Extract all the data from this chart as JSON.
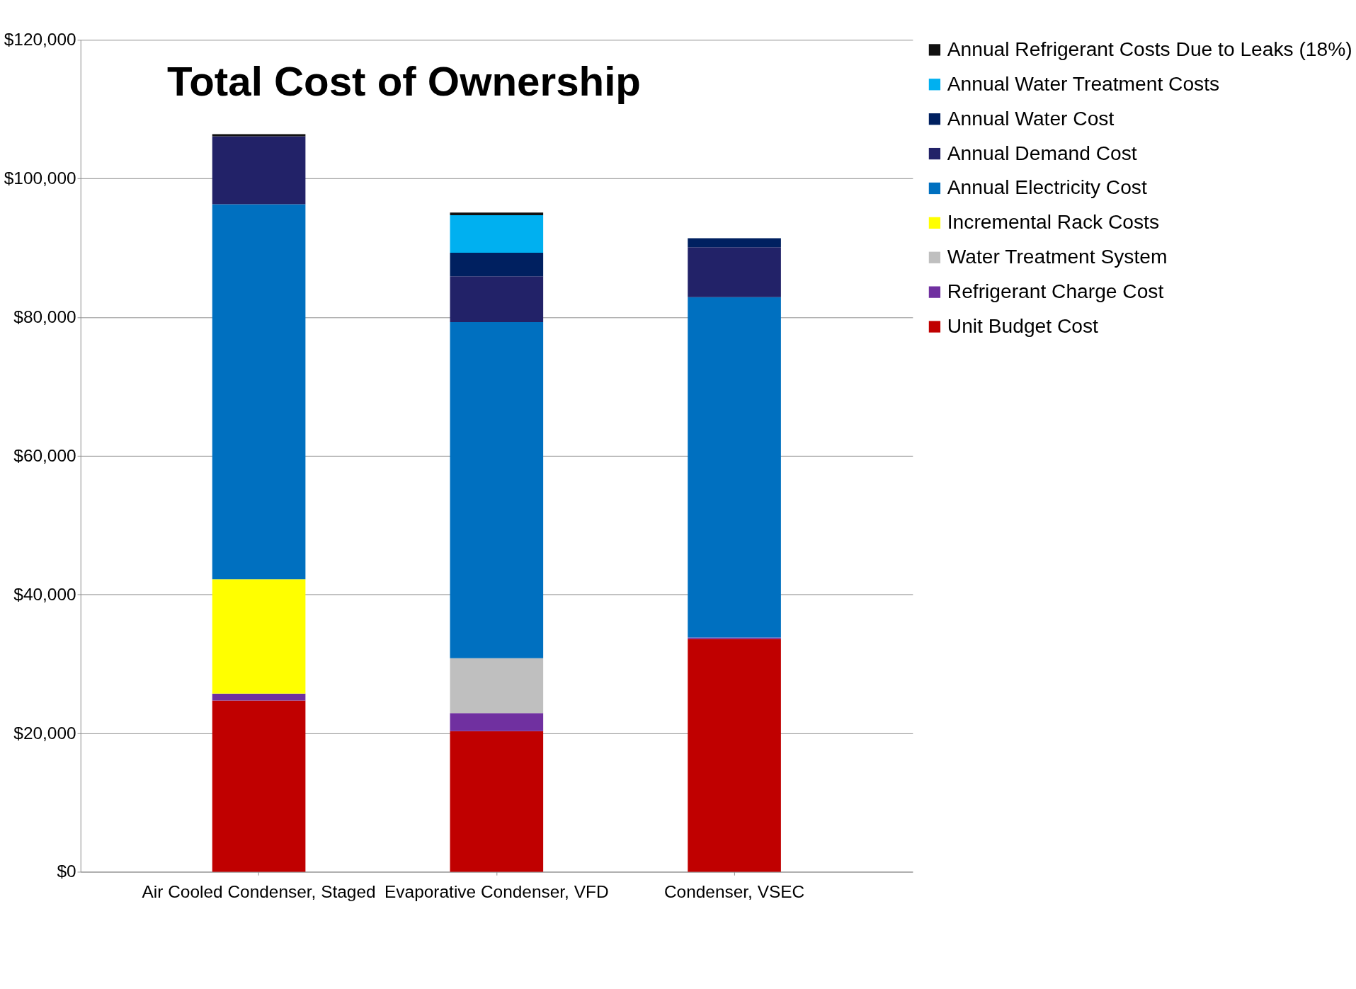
{
  "chart_data": {
    "type": "bar",
    "title": "Total Cost of Ownership",
    "stacked": true,
    "categories": [
      "Air Cooled Condenser, Staged",
      "Evaporative Condenser, VFD",
      "Condenser, VSEC"
    ],
    "series": [
      {
        "name": "Unit Budget Cost",
        "color": "#c00000",
        "values": [
          24700,
          20300,
          33600
        ]
      },
      {
        "name": "Refrigerant Charge Cost",
        "color": "#7030a0",
        "values": [
          1000,
          2600,
          200
        ]
      },
      {
        "name": "Water Treatment System",
        "color": "#bfbfbf",
        "values": [
          0,
          7900,
          0
        ]
      },
      {
        "name": "Incremental Rack Costs",
        "color": "#ffff00",
        "values": [
          16500,
          0,
          0
        ]
      },
      {
        "name": "Annual Electricity Cost",
        "color": "#0070c0",
        "values": [
          54100,
          48500,
          49100
        ]
      },
      {
        "name": "Annual Demand Cost",
        "color": "#222268",
        "values": [
          9800,
          6600,
          7200
        ]
      },
      {
        "name": "Annual Water Cost",
        "color": "#002060",
        "values": [
          0,
          3400,
          1300
        ]
      },
      {
        "name": "Annual Water Treatment Costs",
        "color": "#00b0f0",
        "values": [
          0,
          5400,
          0
        ]
      },
      {
        "name": "Annual Refrigerant Costs Due to Leaks (18%)",
        "color": "#111111",
        "values": [
          300,
          400,
          0
        ]
      }
    ],
    "ylim": [
      0,
      120000
    ],
    "yticks": [
      {
        "value": 0,
        "label": "$0"
      },
      {
        "value": 20000,
        "label": "$20,000"
      },
      {
        "value": 40000,
        "label": "$40,000"
      },
      {
        "value": 60000,
        "label": "$60,000"
      },
      {
        "value": 80000,
        "label": "$80,000"
      },
      {
        "value": 100000,
        "label": "$100,000"
      },
      {
        "value": 120000,
        "label": "$120,000"
      }
    ],
    "grid": "y",
    "legend": "right"
  }
}
